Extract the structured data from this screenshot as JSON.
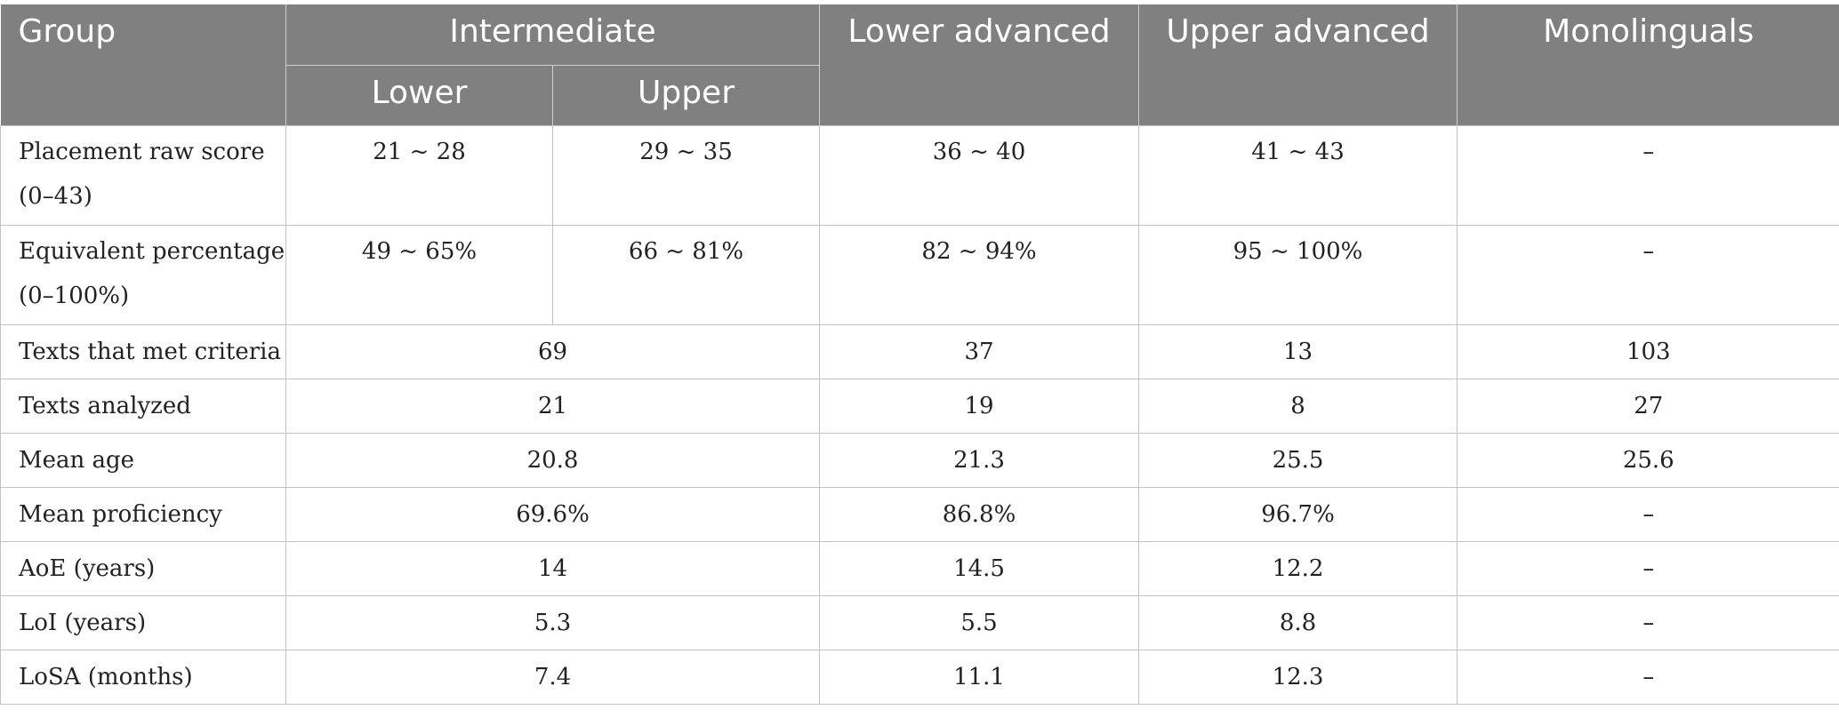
{
  "header": {
    "group": "Group",
    "intermediate": "Intermediate",
    "lower": "Lower",
    "upper": "Upper",
    "lower_advanced": "Lower advanced",
    "upper_advanced": "Upper advanced",
    "monolinguals": "Monolinguals"
  },
  "rows": {
    "placement": {
      "label_line1": "Placement raw score",
      "label_line2": "(0–43)",
      "int_lower": "21 ~ 28",
      "int_upper": "29 ~ 35",
      "lower_adv": "36 ~ 40",
      "upper_adv": "41 ~ 43",
      "mono": "–"
    },
    "equivalent": {
      "label_line1": "Equivalent percentage",
      "label_line2": "(0–100%)",
      "int_lower": "49 ~ 65%",
      "int_upper": "66 ~ 81%",
      "lower_adv": "82 ~ 94%",
      "upper_adv": "95 ~ 100%",
      "mono": "–"
    },
    "texts_met": {
      "label": "Texts that met criteria",
      "intermediate": "69",
      "lower_adv": "37",
      "upper_adv": "13",
      "mono": "103"
    },
    "texts_analyzed": {
      "label": "Texts analyzed",
      "intermediate": "21",
      "lower_adv": "19",
      "upper_adv": "8",
      "mono": "27"
    },
    "mean_age": {
      "label": "Mean age",
      "intermediate": "20.8",
      "lower_adv": "21.3",
      "upper_adv": "25.5",
      "mono": "25.6"
    },
    "mean_proficiency": {
      "label": "Mean proficiency",
      "intermediate": "69.6%",
      "lower_adv": "86.8%",
      "upper_adv": "96.7%",
      "mono": "–"
    },
    "aoe": {
      "label": "AoE (years)",
      "intermediate": "14",
      "lower_adv": "14.5",
      "upper_adv": "12.2",
      "mono": "–"
    },
    "loi": {
      "label": "LoI (years)",
      "intermediate": "5.3",
      "lower_adv": "5.5",
      "upper_adv": "8.8",
      "mono": "–"
    },
    "losa": {
      "label": "LoSA (months)",
      "intermediate": "7.4",
      "lower_adv": "11.1",
      "upper_adv": "12.3",
      "mono": "–"
    }
  }
}
